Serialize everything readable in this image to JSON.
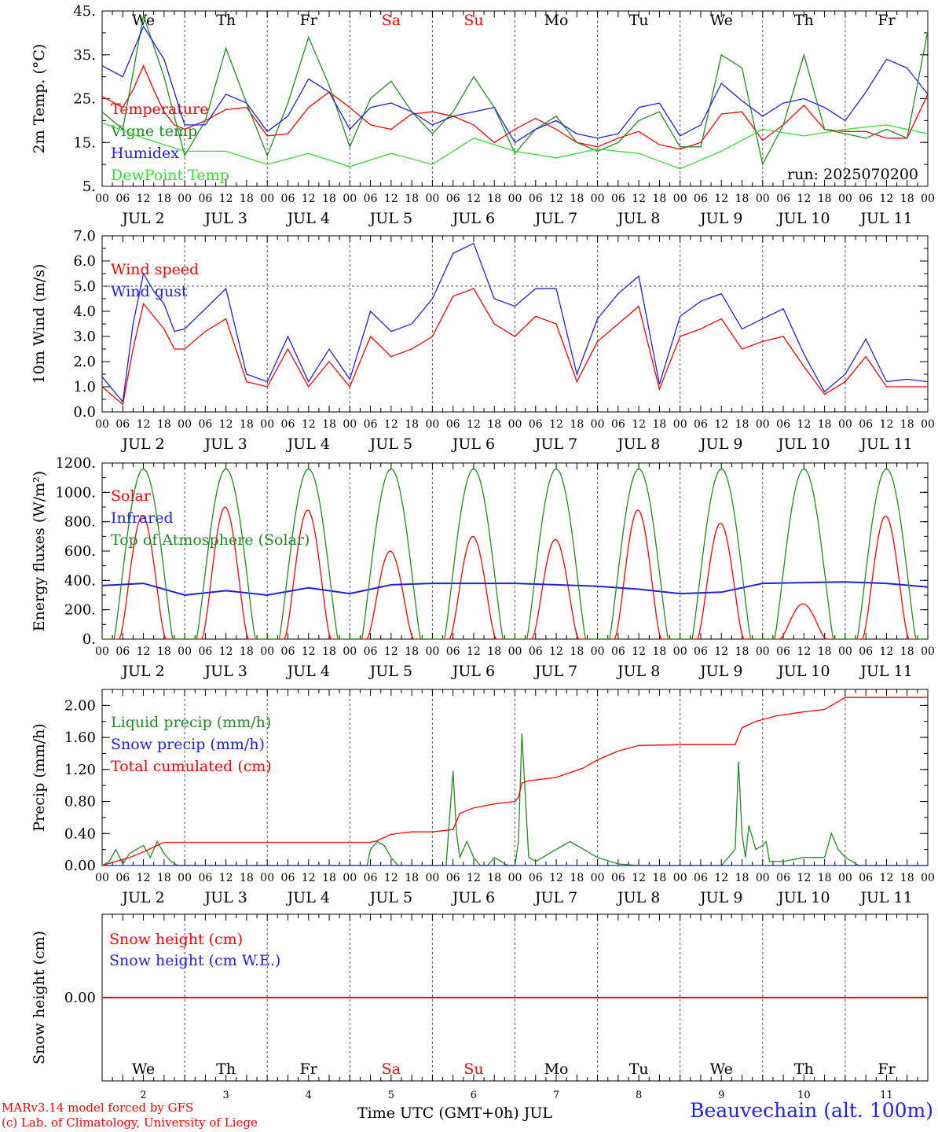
{
  "chart_data": [
    {
      "id": "temperature",
      "type": "line",
      "ylabel": "2m Temp. (°C)",
      "ylim": [
        5,
        45
      ],
      "yticks": [
        "5.",
        "15.",
        "25.",
        "35.",
        "45."
      ],
      "ytick_values": [
        5,
        15,
        25,
        35,
        45
      ],
      "x_unit": "hours since JUL 2 00 UTC",
      "xlim": [
        0,
        240
      ],
      "grid": "vertical dashed lines at 00 UTC",
      "weekdays_on_top": true,
      "legend": "top-left",
      "annotation": "run: 2025070200",
      "series": [
        {
          "name": "Temperature",
          "color": "#ff0000",
          "x": [
            0,
            6,
            9,
            12,
            15,
            18,
            21,
            24,
            30,
            36,
            42,
            48,
            54,
            60,
            66,
            72,
            78,
            84,
            90,
            96,
            102,
            108,
            114,
            120,
            126,
            132,
            138,
            144,
            150,
            156,
            162,
            168,
            174,
            180,
            186,
            192,
            198,
            204,
            210,
            216,
            222,
            228,
            234,
            240
          ],
          "y": [
            25.5,
            23,
            27,
            32.5,
            27,
            22,
            19,
            18,
            20,
            22.5,
            23,
            16.5,
            17,
            23,
            26.5,
            23,
            19,
            18,
            21.5,
            22,
            21,
            19,
            15,
            18,
            20.5,
            18,
            15,
            14,
            16,
            17.5,
            14.5,
            13.5,
            15,
            21.5,
            22,
            15.5,
            19,
            23.5,
            18,
            17.5,
            17.5,
            16,
            16,
            26
          ]
        },
        {
          "name": "Vigne temp",
          "color": "#228b22",
          "x": [
            0,
            6,
            12,
            18,
            24,
            30,
            36,
            42,
            48,
            54,
            60,
            66,
            72,
            78,
            84,
            90,
            96,
            102,
            108,
            114,
            120,
            126,
            132,
            138,
            144,
            150,
            156,
            162,
            168,
            174,
            180,
            186,
            192,
            198,
            204,
            210,
            216,
            222,
            228,
            234,
            240
          ],
          "y": [
            22,
            18,
            44,
            30,
            12,
            20,
            36.5,
            24,
            12,
            24,
            39,
            28,
            14,
            25,
            29,
            22,
            17,
            22,
            30,
            23,
            12.5,
            18,
            21,
            15,
            13,
            15,
            20,
            22,
            14,
            14,
            35,
            32,
            10,
            19,
            35,
            18,
            17,
            16,
            18,
            16,
            40.5
          ]
        },
        {
          "name": "Humidex",
          "color": "#2020e0",
          "x": [
            0,
            6,
            12,
            18,
            24,
            30,
            36,
            42,
            48,
            54,
            60,
            66,
            72,
            78,
            84,
            90,
            96,
            102,
            108,
            114,
            120,
            126,
            132,
            138,
            144,
            150,
            156,
            162,
            168,
            174,
            180,
            186,
            192,
            198,
            204,
            210,
            216,
            222,
            228,
            234,
            240
          ],
          "y": [
            32.5,
            30,
            41.5,
            34,
            19,
            19,
            26,
            24,
            17.5,
            21,
            29.5,
            26.5,
            18,
            23,
            24,
            22,
            19,
            21,
            22,
            23,
            15,
            18,
            20,
            17,
            16,
            17,
            23,
            24,
            16.5,
            19,
            28.5,
            24.5,
            21,
            24,
            25,
            23,
            20,
            26.5,
            34,
            32,
            26
          ]
        },
        {
          "name": "DewPoint Temp",
          "color": "#33dd33",
          "x": [
            0,
            12,
            24,
            36,
            48,
            60,
            72,
            84,
            96,
            108,
            120,
            132,
            144,
            156,
            168,
            180,
            192,
            204,
            216,
            228,
            240
          ],
          "y": [
            19.5,
            16,
            13,
            13,
            10,
            12.5,
            9.5,
            12.5,
            10,
            16,
            13,
            11.5,
            13.5,
            12.5,
            9,
            13,
            18,
            16.5,
            18,
            19,
            17
          ]
        }
      ]
    },
    {
      "id": "wind",
      "type": "line",
      "ylabel": "10m Wind (m/s)",
      "ylim": [
        0,
        7
      ],
      "yticks": [
        "0.0",
        "1.0",
        "2.0",
        "3.0",
        "4.0",
        "5.0",
        "6.0",
        "7.0"
      ],
      "ytick_values": [
        0,
        1,
        2,
        3,
        4,
        5,
        6,
        7
      ],
      "xlim": [
        0,
        240
      ],
      "reference_line": 5.0,
      "legend": "top-left",
      "series": [
        {
          "name": "Wind speed",
          "color": "#ff0000",
          "x": [
            0,
            6,
            9,
            12,
            15,
            18,
            21,
            24,
            30,
            36,
            42,
            48,
            54,
            60,
            66,
            72,
            78,
            84,
            90,
            96,
            102,
            108,
            114,
            120,
            126,
            132,
            138,
            144,
            150,
            156,
            162,
            168,
            174,
            180,
            186,
            192,
            198,
            204,
            210,
            216,
            222,
            228,
            234,
            240
          ],
          "y": [
            1.0,
            0.3,
            2.5,
            4.3,
            3.8,
            3.3,
            2.5,
            2.5,
            3.2,
            3.7,
            1.2,
            1.0,
            2.5,
            1.0,
            2.0,
            1.0,
            3.0,
            2.2,
            2.5,
            3.0,
            4.6,
            4.9,
            3.5,
            3.0,
            3.8,
            3.5,
            1.2,
            2.8,
            3.5,
            4.2,
            0.9,
            3.0,
            3.3,
            3.7,
            2.5,
            2.8,
            3.0,
            1.8,
            0.7,
            1.2,
            2.2,
            1.0,
            1.0,
            1.0
          ]
        },
        {
          "name": "Wind gust",
          "color": "#2020e0",
          "x": [
            0,
            6,
            9,
            12,
            15,
            18,
            21,
            24,
            30,
            36,
            42,
            48,
            54,
            60,
            66,
            72,
            78,
            84,
            90,
            96,
            102,
            108,
            114,
            120,
            126,
            132,
            138,
            144,
            150,
            156,
            162,
            168,
            174,
            180,
            186,
            192,
            198,
            204,
            210,
            216,
            222,
            228,
            234,
            240
          ],
          "y": [
            1.4,
            0.4,
            3.5,
            5.5,
            4.8,
            4.3,
            3.2,
            3.3,
            4.1,
            4.9,
            1.5,
            1.2,
            3.0,
            1.2,
            2.5,
            1.3,
            4.0,
            3.2,
            3.5,
            4.5,
            6.3,
            6.7,
            4.5,
            4.2,
            4.9,
            4.9,
            1.5,
            3.7,
            4.7,
            5.4,
            1.1,
            3.8,
            4.4,
            4.7,
            3.3,
            3.7,
            4.1,
            2.3,
            0.8,
            1.5,
            2.9,
            1.2,
            1.3,
            1.2
          ]
        }
      ]
    },
    {
      "id": "energy",
      "type": "line",
      "ylabel": "Energy fluxes (W/m²)",
      "ylim": [
        0,
        1200
      ],
      "yticks": [
        "0.",
        "200.",
        "400.",
        "600.",
        "800.",
        "1000.",
        "1200."
      ],
      "ytick_values": [
        0,
        200,
        400,
        600,
        800,
        1000,
        1200
      ],
      "xlim": [
        0,
        240
      ],
      "legend": "top-left",
      "series": [
        {
          "name": "Solar",
          "color": "#ff0000",
          "daily_peak": [
            840,
            900,
            880,
            600,
            700,
            680,
            880,
            790,
            240,
            840
          ]
        },
        {
          "name": "Infrared",
          "color": "#2020e0",
          "x": [
            0,
            12,
            24,
            36,
            48,
            60,
            72,
            84,
            96,
            108,
            120,
            132,
            144,
            156,
            168,
            180,
            192,
            204,
            216,
            228,
            240
          ],
          "y": [
            365,
            380,
            300,
            330,
            300,
            350,
            310,
            370,
            380,
            380,
            380,
            370,
            360,
            340,
            310,
            320,
            380,
            385,
            390,
            380,
            355
          ]
        },
        {
          "name": "Top of Atmosphere (Solar)",
          "color": "#228b22",
          "daily_peak": [
            1160,
            1160,
            1160,
            1160,
            1160,
            1160,
            1160,
            1160,
            1160,
            1160
          ]
        }
      ]
    },
    {
      "id": "precip",
      "type": "line",
      "ylabel": "Precip (mm/h)",
      "ylim": [
        0,
        2.2
      ],
      "yticks": [
        "0.00",
        "0.40",
        "0.80",
        "1.20",
        "1.60",
        "2.00"
      ],
      "ytick_values": [
        0,
        0.4,
        0.8,
        1.2,
        1.6,
        2.0
      ],
      "xlim": [
        0,
        240
      ],
      "legend": "top-left",
      "series": [
        {
          "name": "Liquid precip (mm/h)",
          "color": "#228b22",
          "x": [
            0,
            2,
            4,
            6,
            8,
            10,
            12,
            14,
            16,
            18,
            20,
            22,
            24,
            30,
            36,
            42,
            48,
            54,
            60,
            66,
            72,
            77,
            78,
            80,
            82,
            84,
            86,
            90,
            96,
            100,
            101,
            102,
            103,
            104,
            106,
            108,
            110,
            112,
            114,
            116,
            118,
            120,
            121,
            122,
            124,
            126,
            128,
            132,
            136,
            138,
            140,
            144,
            150,
            156,
            162,
            168,
            174,
            180,
            184,
            185,
            186,
            187,
            188,
            190,
            192,
            193,
            194,
            198,
            204,
            210,
            212,
            214,
            216,
            220,
            240
          ],
          "y": [
            0,
            0.05,
            0.2,
            0.02,
            0.15,
            0.2,
            0.25,
            0.1,
            0.3,
            0.15,
            0.05,
            0,
            0,
            0,
            0,
            0,
            0,
            0,
            0,
            0,
            0,
            0,
            0.2,
            0.3,
            0.25,
            0.1,
            0,
            0,
            0,
            0,
            0.6,
            1.18,
            0.4,
            0.1,
            0.3,
            0.1,
            0,
            0,
            0.1,
            0.05,
            0,
            0,
            0.3,
            1.65,
            0.1,
            0.05,
            0.1,
            0.2,
            0.3,
            0.25,
            0.2,
            0.1,
            0.02,
            0,
            0,
            0,
            0,
            0,
            0.2,
            1.3,
            0.4,
            0.1,
            0.5,
            0.2,
            0.25,
            0.3,
            0.05,
            0.05,
            0.1,
            0.1,
            0.4,
            0.2,
            0.1,
            0,
            0
          ]
        },
        {
          "name": "Snow precip (mm/h)",
          "color": "#2020e0",
          "x": [
            0,
            240
          ],
          "y": [
            0,
            0
          ]
        },
        {
          "name": "Total cumulated (cm)",
          "color": "#ff0000",
          "x": [
            0,
            4,
            8,
            12,
            16,
            18,
            24,
            36,
            48,
            60,
            72,
            78,
            80,
            84,
            90,
            96,
            102,
            104,
            108,
            114,
            120,
            121,
            122,
            124,
            132,
            140,
            144,
            150,
            156,
            168,
            180,
            184,
            186,
            190,
            196,
            204,
            210,
            216,
            240
          ],
          "y": [
            0,
            0.05,
            0.1,
            0.17,
            0.25,
            0.29,
            0.29,
            0.29,
            0.29,
            0.29,
            0.29,
            0.29,
            0.31,
            0.39,
            0.42,
            0.42,
            0.45,
            0.65,
            0.72,
            0.77,
            0.8,
            0.85,
            1.03,
            1.06,
            1.1,
            1.22,
            1.32,
            1.43,
            1.5,
            1.51,
            1.51,
            1.51,
            1.72,
            1.8,
            1.87,
            1.92,
            1.95,
            2.1,
            2.1
          ]
        }
      ]
    },
    {
      "id": "snow",
      "type": "line",
      "ylabel": "Snow height (cm)",
      "ylim": [
        -1,
        1
      ],
      "yticks": [
        "0.00"
      ],
      "ytick_values": [
        0
      ],
      "xlim": [
        0,
        240
      ],
      "legend": "top-left",
      "series": [
        {
          "name": "Snow height (cm)",
          "color": "#ff0000",
          "x": [
            0,
            240
          ],
          "y": [
            0,
            0
          ]
        },
        {
          "name": "Snow height (cm W.E.)",
          "color": "#2020e0"
        }
      ]
    }
  ],
  "days": [
    {
      "date": "JUL 2",
      "weekday": "We",
      "day_num": "2",
      "weekend": false
    },
    {
      "date": "JUL 3",
      "weekday": "Th",
      "day_num": "3",
      "weekend": false
    },
    {
      "date": "JUL 4",
      "weekday": "Fr",
      "day_num": "4",
      "weekend": false
    },
    {
      "date": "JUL 5",
      "weekday": "Sa",
      "day_num": "5",
      "weekend": true
    },
    {
      "date": "JUL 6",
      "weekday": "Su",
      "day_num": "6",
      "weekend": true
    },
    {
      "date": "JUL 7",
      "weekday": "Mo",
      "day_num": "7",
      "weekend": false
    },
    {
      "date": "JUL 8",
      "weekday": "Tu",
      "day_num": "8",
      "weekend": false
    },
    {
      "date": "JUL 9",
      "weekday": "We",
      "day_num": "9",
      "weekend": false
    },
    {
      "date": "JUL 10",
      "weekday": "Th",
      "day_num": "10",
      "weekend": false
    },
    {
      "date": "JUL 11",
      "weekday": "Fr",
      "day_num": "11",
      "weekend": false
    }
  ],
  "hour_labels": [
    "00",
    "06",
    "12",
    "18"
  ],
  "end_hour_label": "00",
  "colors": {
    "weekend": "#ff0000",
    "weekday": "#000000",
    "axis": "#000000",
    "grid": "#555555"
  },
  "footer": {
    "credit_line1": "MARv3.14 model forced by GFS",
    "credit_line2": "(c) Lab. of Climatology, University of Liege",
    "xaxis_title": "Time UTC (GMT+0h) JUL",
    "station": "Beauvechain (alt. 100m)"
  }
}
